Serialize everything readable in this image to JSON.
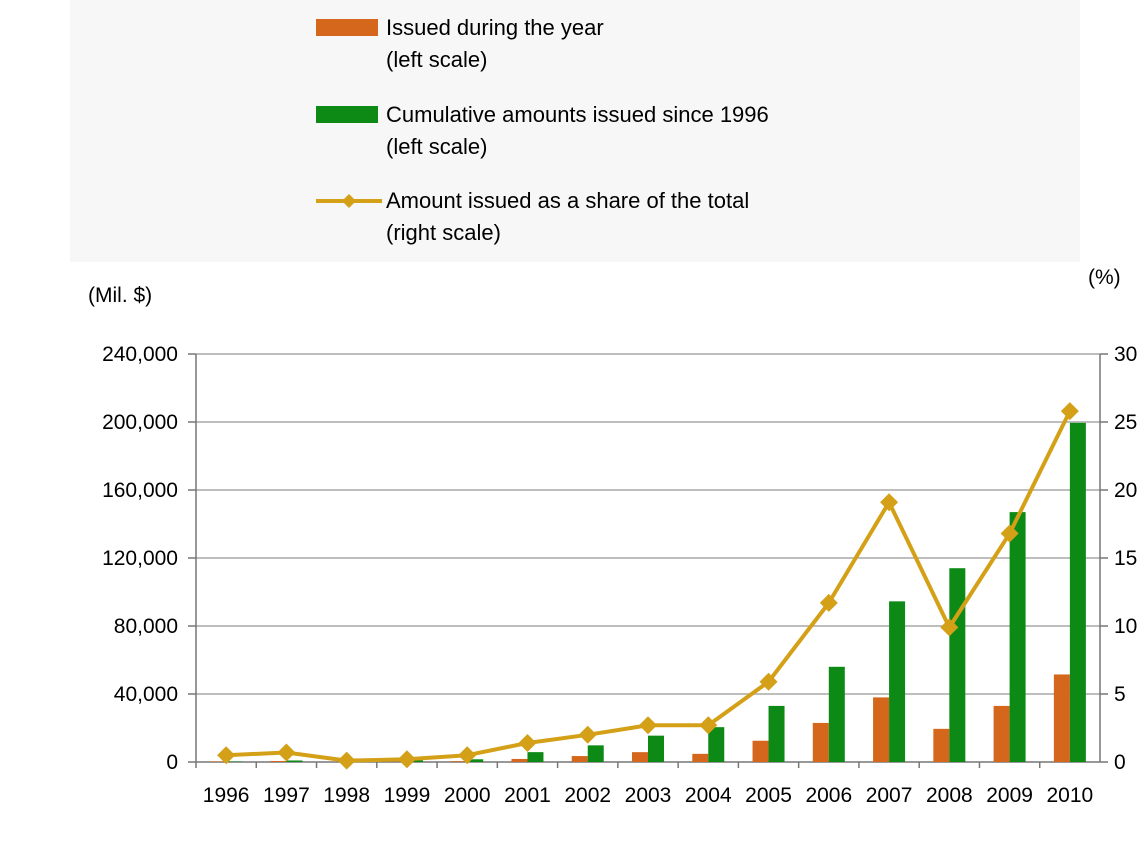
{
  "legend": {
    "items": [
      {
        "label": "Issued during the year",
        "sub": "(left scale)",
        "kind": "bar",
        "color": "#d5671c"
      },
      {
        "label": "Cumulative amounts issued since 1996",
        "sub": "(left scale)",
        "kind": "bar",
        "color": "#0d8a16"
      },
      {
        "label": "Amount issued as a share of the total",
        "sub": "(right scale)",
        "kind": "line",
        "color": "#d4a017"
      }
    ]
  },
  "axes": {
    "left_unit": "(Mil. $)",
    "right_unit": "(%)"
  },
  "chart_data": {
    "type": "bar",
    "categories": [
      "1996",
      "1997",
      "1998",
      "1999",
      "2000",
      "2001",
      "2002",
      "2003",
      "2004",
      "2005",
      "2006",
      "2007",
      "2008",
      "2009",
      "2010"
    ],
    "series": [
      {
        "name": "Issued during the year",
        "axis": "left",
        "type": "bar",
        "color": "#d5671c",
        "values": [
          300,
          600,
          100,
          100,
          500,
          1800,
          3500,
          5800,
          4800,
          12500,
          23000,
          38000,
          19500,
          33000,
          51500
        ]
      },
      {
        "name": "Cumulative amounts issued since 1996",
        "axis": "left",
        "type": "bar",
        "color": "#0d8a16",
        "values": [
          300,
          900,
          1000,
          1100,
          1600,
          5800,
          9800,
          15500,
          20500,
          33000,
          56000,
          94500,
          114000,
          147000,
          199500
        ]
      },
      {
        "name": "Amount issued as a share of the total",
        "axis": "right",
        "type": "line",
        "color": "#d4a017",
        "values": [
          0.5,
          0.7,
          0.1,
          0.2,
          0.5,
          1.4,
          2.0,
          2.7,
          2.7,
          5.9,
          11.7,
          19.1,
          9.9,
          16.8,
          25.8
        ]
      }
    ],
    "y_left": {
      "ylim": [
        0,
        240000
      ],
      "ticks": [
        "0",
        "40,000",
        "80,000",
        "120,000",
        "160,000",
        "200,000",
        "240,000"
      ],
      "tick_values": [
        0,
        40000,
        80000,
        120000,
        160000,
        200000,
        240000
      ]
    },
    "y_right": {
      "ylim": [
        0,
        30
      ],
      "ticks": [
        "0",
        "5",
        "10",
        "15",
        "20",
        "25",
        "30"
      ],
      "tick_values": [
        0,
        5,
        10,
        15,
        20,
        25,
        30
      ]
    },
    "grid": true
  }
}
